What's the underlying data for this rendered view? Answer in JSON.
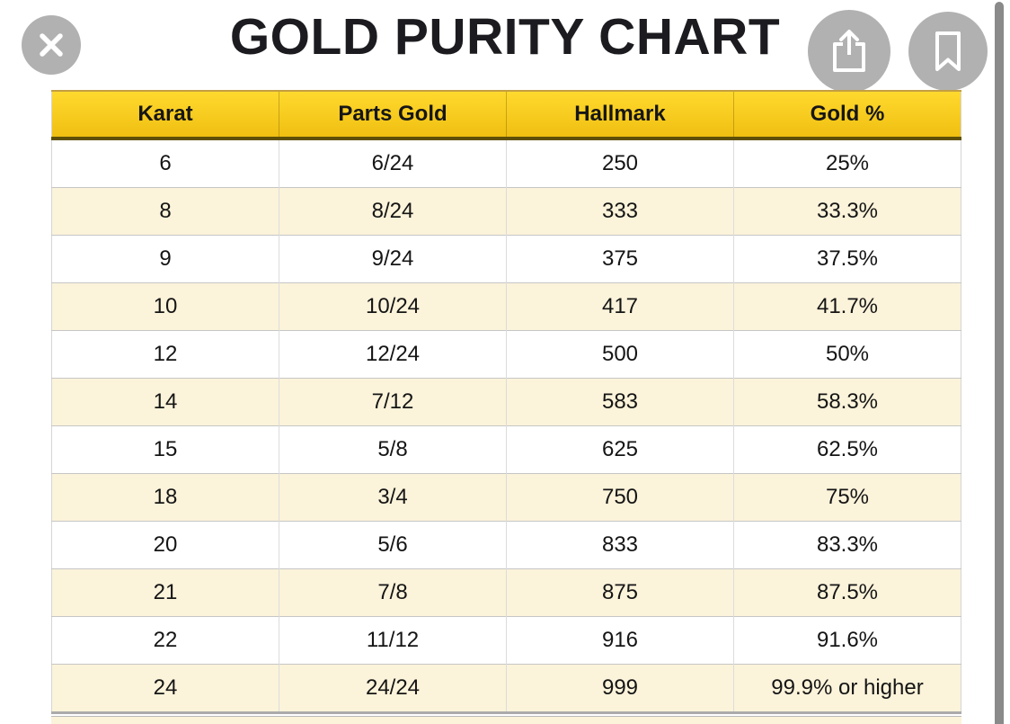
{
  "title": "GOLD PURITY CHART",
  "viewer": {
    "close_label": "Close",
    "share_label": "Share",
    "bookmark_label": "Bookmark"
  },
  "colors": {
    "circle_button": "#b1b1b1",
    "scrollbar": "#8a8a8a",
    "header_gradient_top": "#ffd92e",
    "header_gradient_bottom": "#f0bf12",
    "header_border_bottom": "#5e5008",
    "row_alt": "#fbf3da",
    "row_border": "#c6c6c6",
    "text": "#151515",
    "title_text": "#1c1c20"
  },
  "chart_data": {
    "type": "table",
    "title": "GOLD PURITY CHART",
    "columns": [
      "Karat",
      "Parts Gold",
      "Hallmark",
      "Gold %"
    ],
    "rows": [
      [
        "6",
        "6/24",
        "250",
        "25%"
      ],
      [
        "8",
        "8/24",
        "333",
        "33.3%"
      ],
      [
        "9",
        "9/24",
        "375",
        "37.5%"
      ],
      [
        "10",
        "10/24",
        "417",
        "41.7%"
      ],
      [
        "12",
        "12/24",
        "500",
        "50%"
      ],
      [
        "14",
        "7/12",
        "583",
        "58.3%"
      ],
      [
        "15",
        "5/8",
        "625",
        "62.5%"
      ],
      [
        "18",
        "3/4",
        "750",
        "75%"
      ],
      [
        "20",
        "5/6",
        "833",
        "83.3%"
      ],
      [
        "21",
        "7/8",
        "875",
        "87.5%"
      ],
      [
        "22",
        "11/12",
        "916",
        "91.6%"
      ],
      [
        "24",
        "24/24",
        "999",
        "99.9% or higher"
      ]
    ]
  }
}
